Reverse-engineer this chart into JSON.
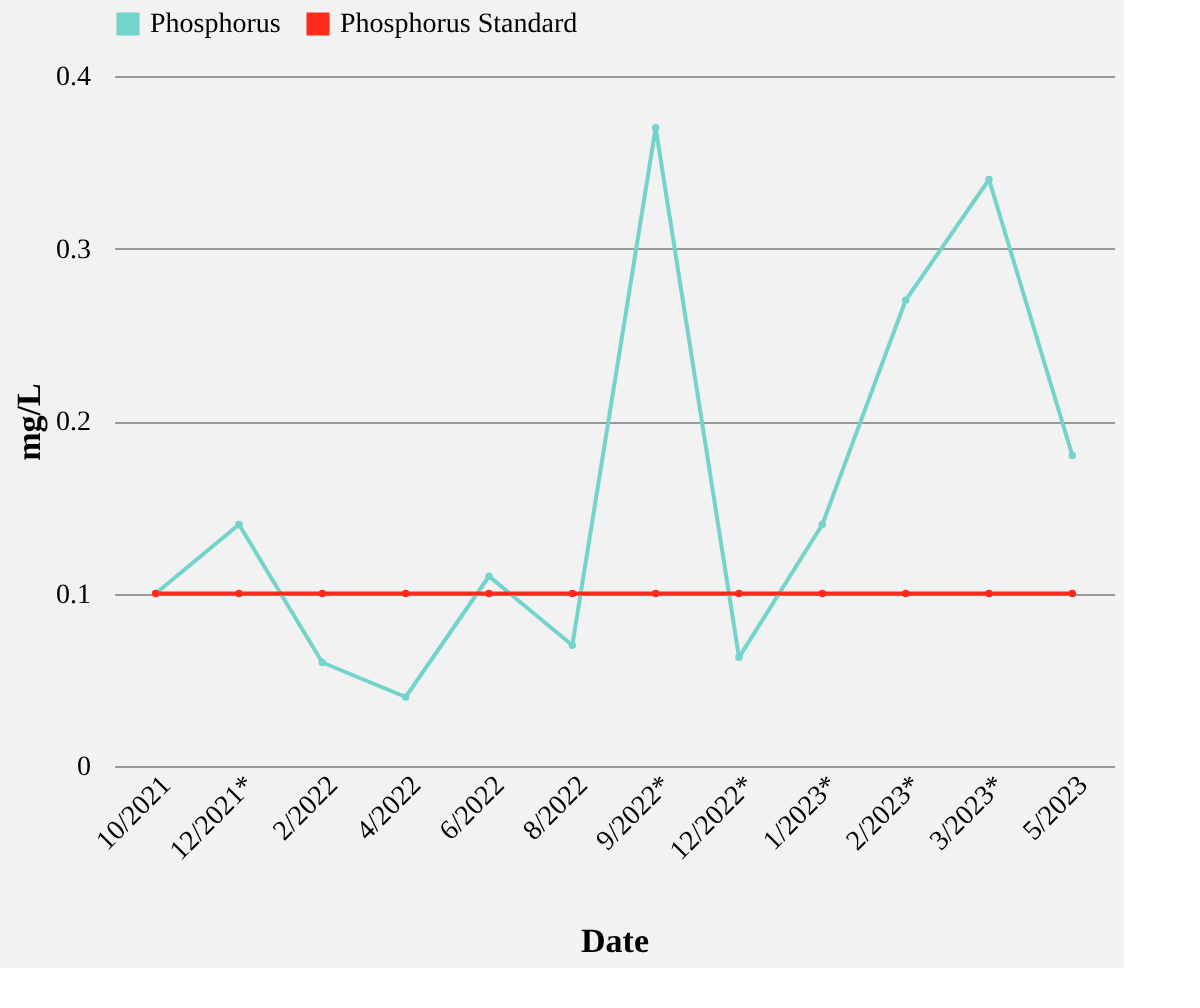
{
  "chart_data": {
    "type": "line",
    "xlabel": "Date",
    "ylabel": "mg/L",
    "categories": [
      "10/2021",
      "12/2021*",
      "2/2022",
      "4/2022",
      "6/2022",
      "8/2022",
      "9/2022*",
      "12/2022*",
      "1/2023*",
      "2/2023*",
      "3/2023*",
      "5/2023"
    ],
    "series": [
      {
        "name": "Phosphorus",
        "color": "#74d3cb",
        "values": [
          0.1,
          0.14,
          0.06,
          0.04,
          0.11,
          0.07,
          0.37,
          0.063,
          0.14,
          0.27,
          0.34,
          0.18
        ]
      },
      {
        "name": "Phosphorus Standard",
        "color": "#ff2a1a",
        "values": [
          0.1,
          0.1,
          0.1,
          0.1,
          0.1,
          0.1,
          0.1,
          0.1,
          0.1,
          0.1,
          0.1,
          0.1
        ]
      }
    ],
    "ylim": [
      0,
      0.4
    ],
    "yticks": [
      0,
      0.1,
      0.2,
      0.3,
      0.4
    ],
    "grid": "y",
    "legend": "top",
    "marker": "circle",
    "line_style": "solid"
  }
}
